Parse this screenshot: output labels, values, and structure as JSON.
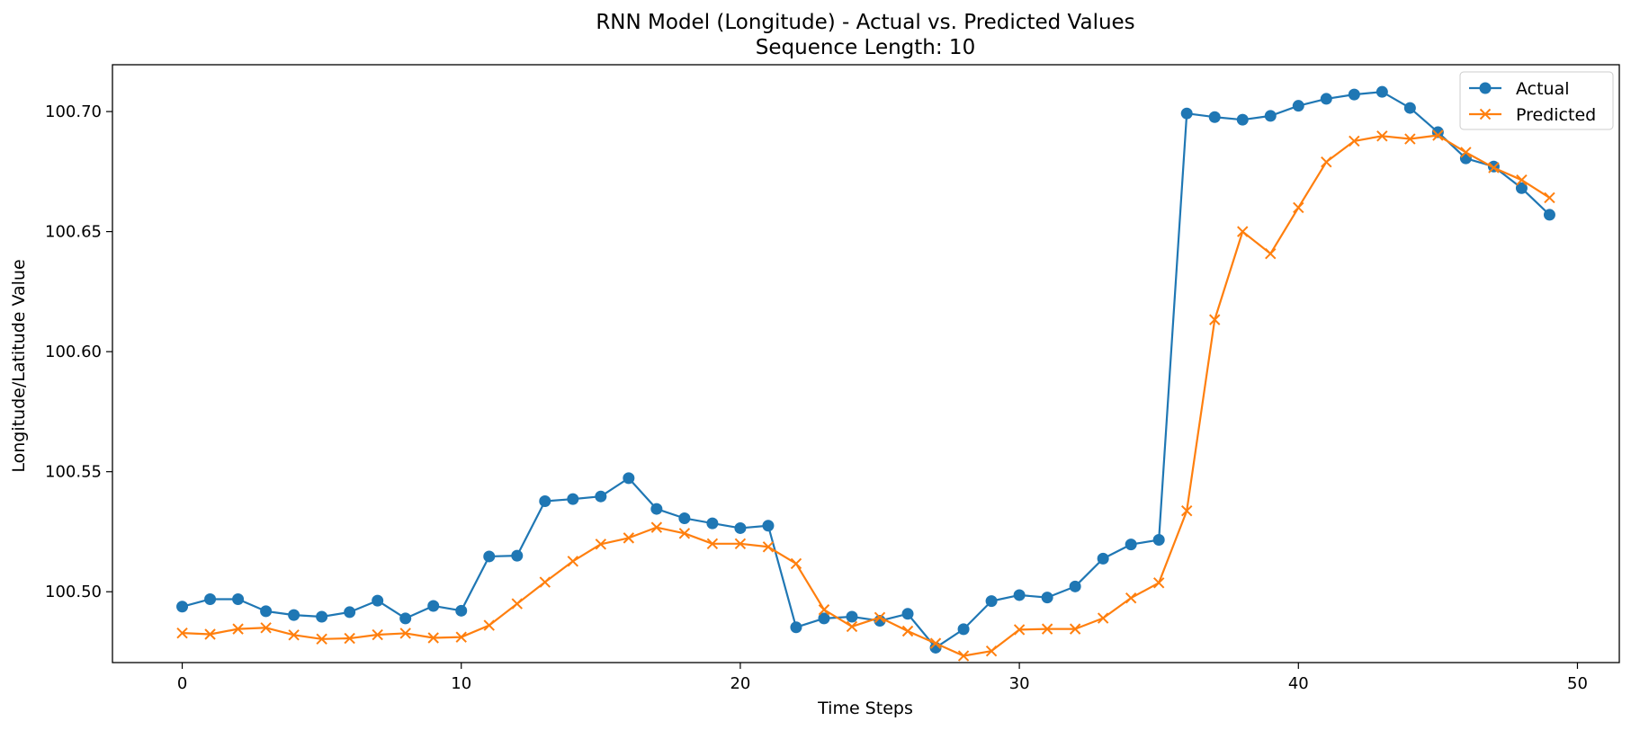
{
  "chart_data": {
    "type": "line",
    "title": "RNN Model (Longitude) - Actual vs. Predicted Values",
    "subtitle": "Sequence Length: 10",
    "xlabel": "Time Steps",
    "ylabel": "Longitude/Latitude Value",
    "xlim": [
      -2.5,
      51.5
    ],
    "ylim": [
      100.4705,
      100.7195
    ],
    "x_ticks": [
      0,
      10,
      20,
      30,
      40,
      50
    ],
    "x_tick_labels": [
      "0",
      "10",
      "20",
      "30",
      "40",
      "50"
    ],
    "y_ticks": [
      100.5,
      100.55,
      100.6,
      100.65,
      100.7
    ],
    "y_tick_labels": [
      "100.50",
      "100.55",
      "100.60",
      "100.65",
      "100.70"
    ],
    "grid": false,
    "legend_position": "top-right",
    "x": [
      0,
      1,
      2,
      3,
      4,
      5,
      6,
      7,
      8,
      9,
      10,
      11,
      12,
      13,
      14,
      15,
      16,
      17,
      18,
      19,
      20,
      21,
      22,
      23,
      24,
      25,
      26,
      27,
      28,
      29,
      30,
      31,
      32,
      33,
      34,
      35,
      36,
      37,
      38,
      39,
      40,
      41,
      42,
      43,
      44,
      45,
      46,
      47,
      48,
      49
    ],
    "series": [
      {
        "name": "Actual",
        "color": "#1f77b4",
        "marker": "circle",
        "values": [
          100.4938,
          100.4969,
          100.4969,
          100.4919,
          100.4903,
          100.4896,
          100.4915,
          100.4963,
          100.4889,
          100.4941,
          100.4921,
          100.5147,
          100.515,
          100.5377,
          100.5386,
          100.5397,
          100.5473,
          100.5345,
          100.5306,
          100.5285,
          100.5265,
          100.5275,
          100.4852,
          100.4889,
          100.4896,
          100.4879,
          100.4908,
          100.4767,
          100.4844,
          100.4961,
          100.4986,
          100.4976,
          100.5022,
          100.5138,
          100.5197,
          100.5216,
          100.6992,
          100.6977,
          100.6966,
          100.6982,
          100.7024,
          100.7053,
          100.7071,
          100.7082,
          100.7015,
          100.6914,
          100.6805,
          100.6771,
          100.6681,
          100.657
        ]
      },
      {
        "name": "Predicted",
        "color": "#ff7f0e",
        "marker": "x",
        "values": [
          100.4828,
          100.4823,
          100.4845,
          100.485,
          100.482,
          100.4803,
          100.4806,
          100.4821,
          100.4827,
          100.4808,
          100.4811,
          100.486,
          100.495,
          100.504,
          100.5127,
          100.5198,
          100.5224,
          100.5268,
          100.5243,
          100.52,
          100.52,
          100.5187,
          100.5117,
          100.4925,
          100.4855,
          100.4893,
          100.4836,
          100.4785,
          100.4733,
          100.4753,
          100.4842,
          100.4845,
          100.4845,
          100.489,
          100.4974,
          100.5037,
          100.5337,
          100.6133,
          100.65,
          100.6408,
          100.66,
          100.679,
          100.6877,
          100.6898,
          100.6886,
          100.6901,
          100.683,
          100.6766,
          100.6715,
          100.6641
        ]
      }
    ]
  }
}
